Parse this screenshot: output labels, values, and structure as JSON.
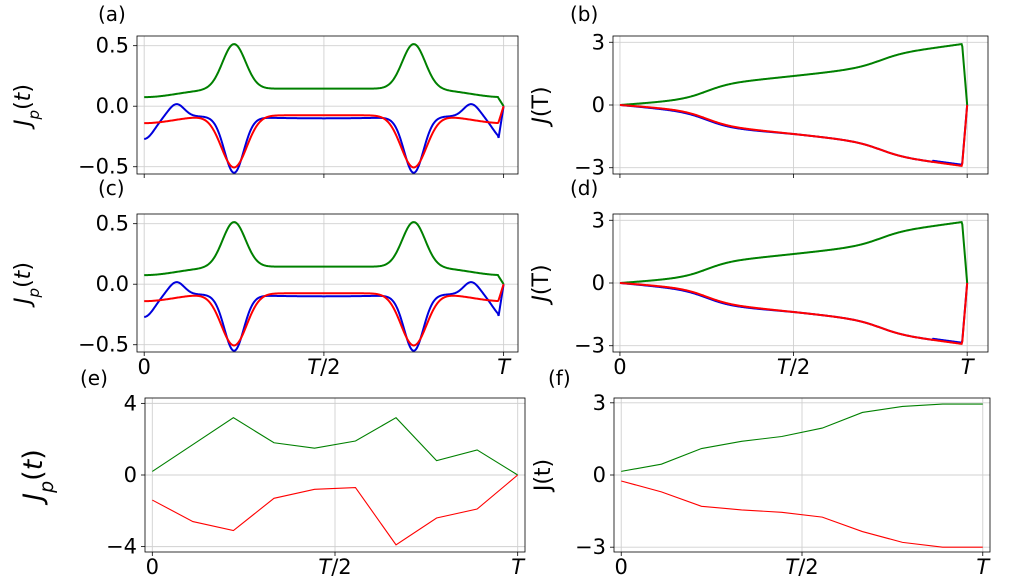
{
  "chart_data": [
    {
      "id": "a",
      "type": "line",
      "panel_label": "(a)",
      "ylabel": "J_p(t)",
      "xlim": [
        -0.02,
        1.04
      ],
      "ylim": [
        -0.56,
        0.58
      ],
      "yticks": [
        0.5,
        0.0,
        -0.5
      ],
      "ytick_labels": [
        "0.5",
        "0.0",
        "−0.5"
      ],
      "xticks": [
        0,
        0.5,
        1
      ],
      "xtick_labels": [],
      "series": [
        {
          "name": "green",
          "color": "#008000",
          "generator": "green_peaks"
        },
        {
          "name": "blue",
          "color": "#0000dd",
          "generator": "blue_wiggle"
        },
        {
          "name": "red",
          "color": "#ff0000",
          "generator": "red_dips"
        }
      ]
    },
    {
      "id": "b",
      "type": "line",
      "panel_label": "(b)",
      "ylabel": "J(T)",
      "xlim": [
        -0.02,
        1.06
      ],
      "ylim": [
        -3.3,
        3.3
      ],
      "yticks": [
        3,
        0,
        -3
      ],
      "ytick_labels": [
        "3",
        "0",
        "−3"
      ],
      "xticks": [
        0,
        0.5,
        1
      ],
      "xtick_labels": [],
      "series": [
        {
          "name": "green",
          "color": "#008000",
          "generator": "cum_up"
        },
        {
          "name": "blue",
          "color": "#0000dd",
          "generator": "cum_down_blue"
        },
        {
          "name": "red",
          "color": "#ff0000",
          "generator": "cum_down"
        }
      ]
    },
    {
      "id": "c",
      "type": "line",
      "panel_label": "(c)",
      "ylabel": "J_p(t)",
      "xlim": [
        -0.02,
        1.04
      ],
      "ylim": [
        -0.56,
        0.58
      ],
      "yticks": [
        0.5,
        0.0,
        -0.5
      ],
      "ytick_labels": [
        "0.5",
        "0.0",
        "−0.5"
      ],
      "xticks": [
        0,
        0.5,
        1
      ],
      "xtick_labels": [
        "0",
        "T/2",
        "T"
      ],
      "series": [
        {
          "name": "green",
          "color": "#008000",
          "generator": "green_peaks"
        },
        {
          "name": "blue",
          "color": "#0000dd",
          "generator": "blue_wiggle"
        },
        {
          "name": "red",
          "color": "#ff0000",
          "generator": "red_dips"
        }
      ]
    },
    {
      "id": "d",
      "type": "line",
      "panel_label": "(d)",
      "ylabel": "J(T)",
      "xlim": [
        -0.02,
        1.06
      ],
      "ylim": [
        -3.3,
        3.3
      ],
      "yticks": [
        3,
        0,
        -3
      ],
      "ytick_labels": [
        "3",
        "0",
        "−3"
      ],
      "xticks": [
        0,
        0.5,
        1
      ],
      "xtick_labels": [
        "0",
        "T/2",
        "T"
      ],
      "series": [
        {
          "name": "green",
          "color": "#008000",
          "generator": "cum_up"
        },
        {
          "name": "blue",
          "color": "#0000dd",
          "generator": "cum_down_blue"
        },
        {
          "name": "red",
          "color": "#ff0000",
          "generator": "cum_down"
        }
      ]
    },
    {
      "id": "e",
      "type": "line",
      "panel_label": "(e)",
      "ylabel": "J_p(t)",
      "xlim": [
        -0.02,
        1.02
      ],
      "ylim": [
        -4.3,
        4.3
      ],
      "yticks": [
        4,
        0,
        -4
      ],
      "ytick_labels": [
        "4",
        "0",
        "−4"
      ],
      "xticks": [
        0,
        0.5,
        1
      ],
      "xtick_labels": [
        "0",
        "T/2",
        "T"
      ],
      "series": [
        {
          "name": "green",
          "color": "#008000",
          "x": [
            0,
            0.111,
            0.222,
            0.333,
            0.444,
            0.556,
            0.667,
            0.778,
            0.889,
            1.0
          ],
          "y": [
            0.2,
            1.7,
            3.2,
            1.8,
            1.5,
            1.9,
            3.2,
            0.8,
            1.4,
            0.0
          ]
        },
        {
          "name": "red",
          "color": "#ff0000",
          "x": [
            0,
            0.111,
            0.222,
            0.333,
            0.444,
            0.556,
            0.667,
            0.778,
            0.889,
            1.0
          ],
          "y": [
            -1.4,
            -2.6,
            -3.1,
            -1.3,
            -0.8,
            -0.7,
            -3.9,
            -2.4,
            -1.9,
            0.0
          ]
        }
      ]
    },
    {
      "id": "f",
      "type": "line",
      "panel_label": "(f)",
      "ylabel": "J(t)",
      "xlim": [
        -0.02,
        1.02
      ],
      "ylim": [
        -3.2,
        3.2
      ],
      "yticks": [
        3,
        0,
        -3
      ],
      "ytick_labels": [
        "3",
        "0",
        "−3"
      ],
      "xticks": [
        0,
        0.5,
        1
      ],
      "xtick_labels": [
        "0",
        "T/2",
        "T"
      ],
      "series": [
        {
          "name": "green",
          "color": "#008000",
          "x": [
            0,
            0.111,
            0.222,
            0.333,
            0.444,
            0.556,
            0.667,
            0.778,
            0.889,
            1.0
          ],
          "y": [
            0.15,
            0.45,
            1.1,
            1.4,
            1.6,
            1.95,
            2.6,
            2.85,
            2.95,
            2.95
          ]
        },
        {
          "name": "red",
          "color": "#ff0000",
          "x": [
            0,
            0.111,
            0.222,
            0.333,
            0.444,
            0.556,
            0.667,
            0.778,
            0.889,
            1.0
          ],
          "y": [
            -0.25,
            -0.7,
            -1.3,
            -1.45,
            -1.55,
            -1.75,
            -2.35,
            -2.8,
            -3.0,
            -3.0
          ]
        }
      ]
    }
  ]
}
